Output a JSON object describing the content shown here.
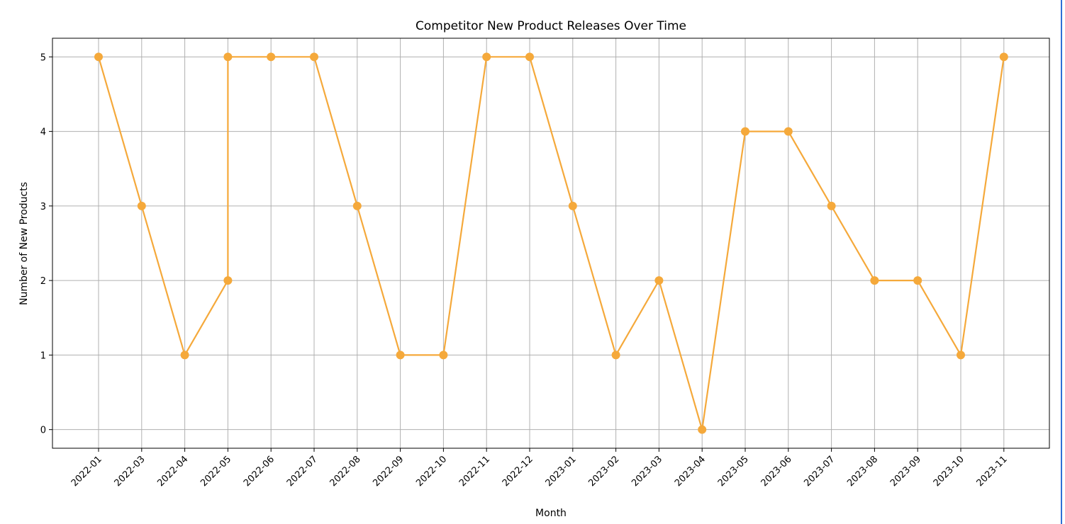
{
  "chart_data": {
    "type": "line",
    "title": "Competitor New Product Releases Over Time",
    "xlabel": "Month",
    "ylabel": "Number of New Products",
    "categories": [
      "2022-01",
      "2022-03",
      "2022-04",
      "2022-05",
      "2022-06",
      "2022-07",
      "2022-08",
      "2022-09",
      "2022-10",
      "2022-11",
      "2022-12",
      "2023-01",
      "2023-02",
      "2023-03",
      "2023-04",
      "2023-05",
      "2023-06",
      "2023-07",
      "2023-08",
      "2023-09",
      "2023-10",
      "2023-11"
    ],
    "points": [
      {
        "x": "2022-01",
        "y": 5
      },
      {
        "x": "2022-03",
        "y": 3
      },
      {
        "x": "2022-04",
        "y": 1
      },
      {
        "x": "2022-05",
        "y": 2
      },
      {
        "x": "2022-05",
        "y": 5
      },
      {
        "x": "2022-06",
        "y": 5
      },
      {
        "x": "2022-07",
        "y": 5
      },
      {
        "x": "2022-08",
        "y": 3
      },
      {
        "x": "2022-09",
        "y": 1
      },
      {
        "x": "2022-10",
        "y": 1
      },
      {
        "x": "2022-11",
        "y": 5
      },
      {
        "x": "2022-12",
        "y": 5
      },
      {
        "x": "2023-01",
        "y": 3
      },
      {
        "x": "2023-02",
        "y": 1
      },
      {
        "x": "2023-03",
        "y": 2
      },
      {
        "x": "2023-04",
        "y": 0
      },
      {
        "x": "2023-05",
        "y": 4
      },
      {
        "x": "2023-06",
        "y": 4
      },
      {
        "x": "2023-07",
        "y": 3
      },
      {
        "x": "2023-08",
        "y": 2
      },
      {
        "x": "2023-09",
        "y": 2
      },
      {
        "x": "2023-10",
        "y": 1
      },
      {
        "x": "2023-11",
        "y": 5
      }
    ],
    "yticks": [
      "0",
      "1",
      "2",
      "3",
      "4",
      "5"
    ],
    "ylim": [
      -0.25,
      5.25
    ],
    "grid": true,
    "color": "#f5a93b"
  }
}
